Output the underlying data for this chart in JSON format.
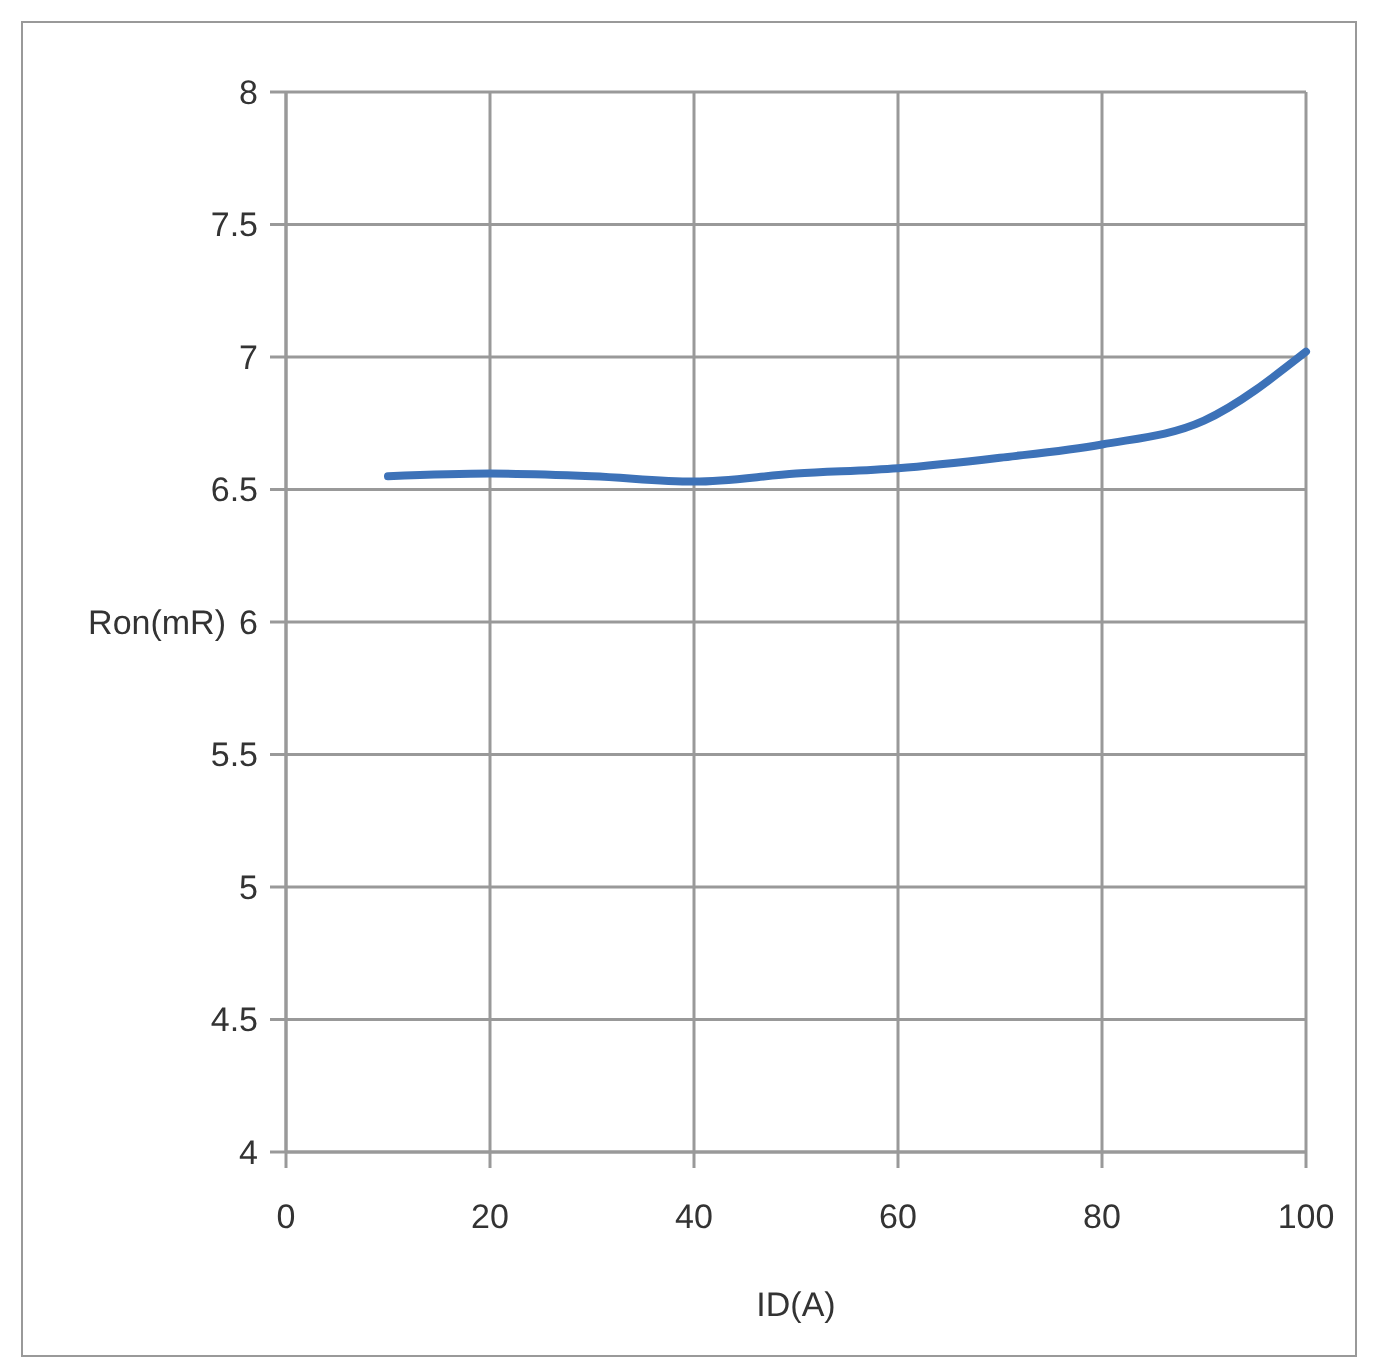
{
  "chart_data": {
    "type": "line",
    "xlabel": "ID(A)",
    "ylabel": "Ron(mR)",
    "x": [
      10,
      20,
      30,
      40,
      50,
      60,
      70,
      80,
      90,
      100
    ],
    "series": [
      {
        "color": "#3d72b8",
        "values": [
          6.55,
          6.56,
          6.55,
          6.53,
          6.56,
          6.58,
          6.62,
          6.67,
          6.76,
          7.02
        ]
      }
    ],
    "xlim": [
      0,
      100
    ],
    "xticks": [
      0,
      20,
      40,
      60,
      80,
      100
    ],
    "ylim": [
      4,
      8
    ],
    "yticks": [
      4,
      4.5,
      5,
      5.5,
      6,
      6.5,
      7,
      7.5,
      8
    ],
    "grid": true,
    "marker": "none",
    "line_style": "solid"
  }
}
